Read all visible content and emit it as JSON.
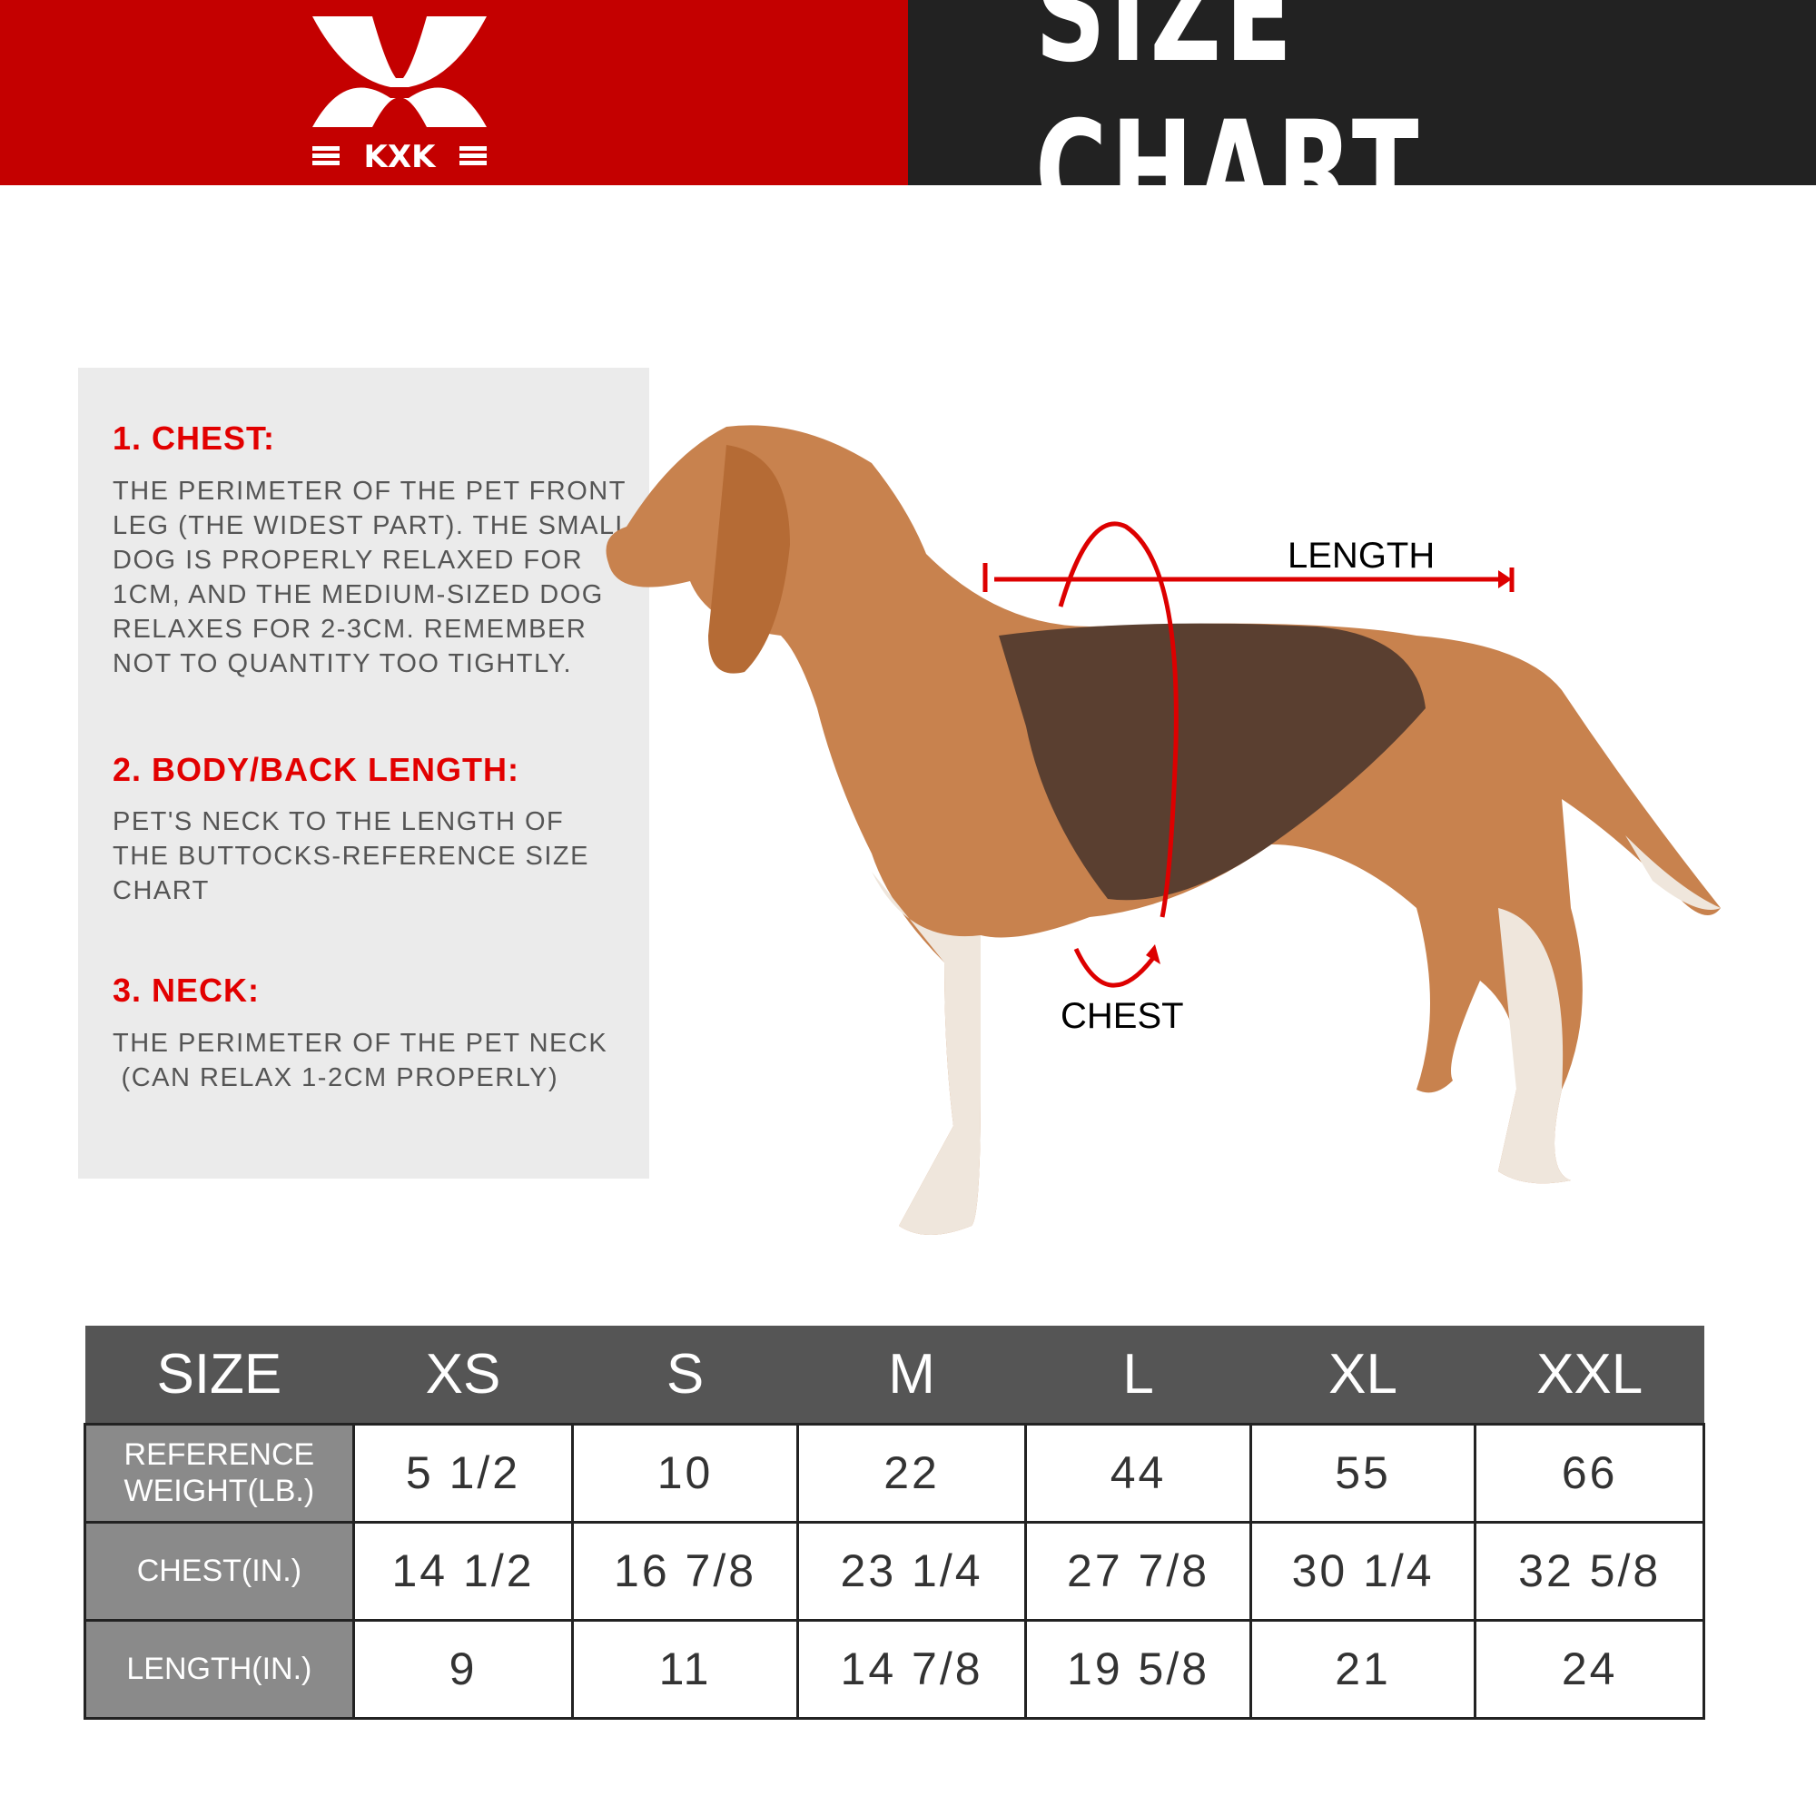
{
  "header": {
    "brand": "KXK",
    "title": "SIZE CHART",
    "colors": {
      "brand_red": "#c40000",
      "dark": "#222222"
    }
  },
  "guide": [
    {
      "heading": "1. CHEST:",
      "text": "THE PERIMETER OF THE PET FRONT\nLEG (THE WIDEST PART). THE SMALL\nDOG IS PROPERLY RELAXED FOR\n1CM, AND THE MEDIUM-SIZED DOG\nRELAXES FOR 2-3CM. REMEMBER\nNOT TO QUANTITY TOO TIGHTLY."
    },
    {
      "heading": "2. BODY/BACK LENGTH:",
      "text": "PET'S NECK TO THE LENGTH OF\nTHE BUTTOCKS-REFERENCE SIZE\nCHART"
    },
    {
      "heading": "3. NECK:",
      "text": "THE PERIMETER OF THE PET NECK\n (CAN RELAX 1-2CM PROPERLY)"
    }
  ],
  "diagram": {
    "length_label": "LENGTH",
    "chest_label": "CHEST"
  },
  "table": {
    "headers": [
      "SIZE",
      "XS",
      "S",
      "M",
      "L",
      "XL",
      "XXL"
    ],
    "rows": [
      {
        "label": "REFERENCE WEIGHT(LB.)",
        "values": [
          "5 1/2",
          "10",
          "22",
          "44",
          "55",
          "66"
        ]
      },
      {
        "label": "CHEST(IN.)",
        "values": [
          "14 1/2",
          "16 7/8",
          "23 1/4",
          "27 7/8",
          "30 1/4",
          "32 5/8"
        ]
      },
      {
        "label": "LENGTH(IN.)",
        "values": [
          "9",
          "11",
          "14 7/8",
          "19 5/8",
          "21",
          "24"
        ]
      }
    ]
  }
}
